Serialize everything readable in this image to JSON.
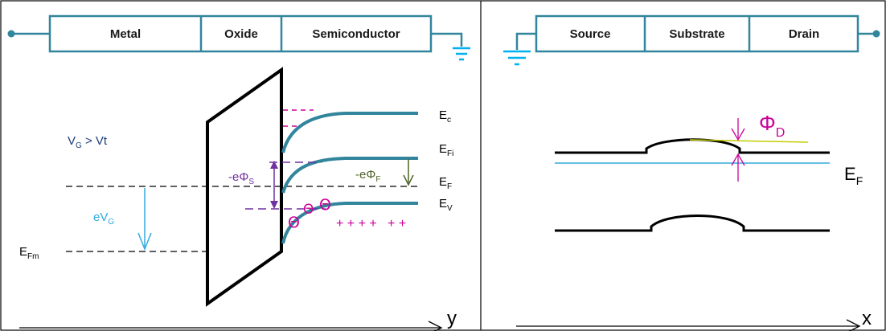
{
  "left_panel": {
    "header": [
      "Metal",
      "Oxide",
      "Semiconductor"
    ],
    "condition": {
      "main": "V",
      "sub": "G",
      "rest": " > Vt"
    },
    "gate_voltage": {
      "main": "eV",
      "sub": "G"
    },
    "metal_fermi": {
      "main": "E",
      "sub": "Fm"
    },
    "surface_potential": {
      "main": "-eΦ",
      "sub": "S"
    },
    "fermi_potential": {
      "main": "-eΦ",
      "sub": "F"
    },
    "bands": {
      "ec": {
        "main": "E",
        "sub": "c"
      },
      "efi": {
        "main": "E",
        "sub": "Fi"
      },
      "ef": {
        "main": "E",
        "sub": "F"
      },
      "ev": {
        "main": "E",
        "sub": "V"
      }
    },
    "electron_symbols": [
      "Θ",
      "Θ",
      "Θ"
    ],
    "positive_charges": "+ + + +   + +",
    "axis_label": "y"
  },
  "right_panel": {
    "header": [
      "Source",
      "Substrate",
      "Drain"
    ],
    "barrier": {
      "main": "Φ",
      "sub": "D"
    },
    "fermi": {
      "main": "E",
      "sub": "F"
    },
    "axis_label": "x"
  },
  "colors": {
    "band": "#31859c",
    "accent_magenta": "#cc0099",
    "accent_purple": "#7030a0",
    "accent_olive": "#4f6228",
    "accent_lightblue": "#33aadd",
    "barrier_line": "#c4cc00",
    "wire": "#31859c",
    "ground": "#00b0f0",
    "header_border": "#31859c"
  }
}
